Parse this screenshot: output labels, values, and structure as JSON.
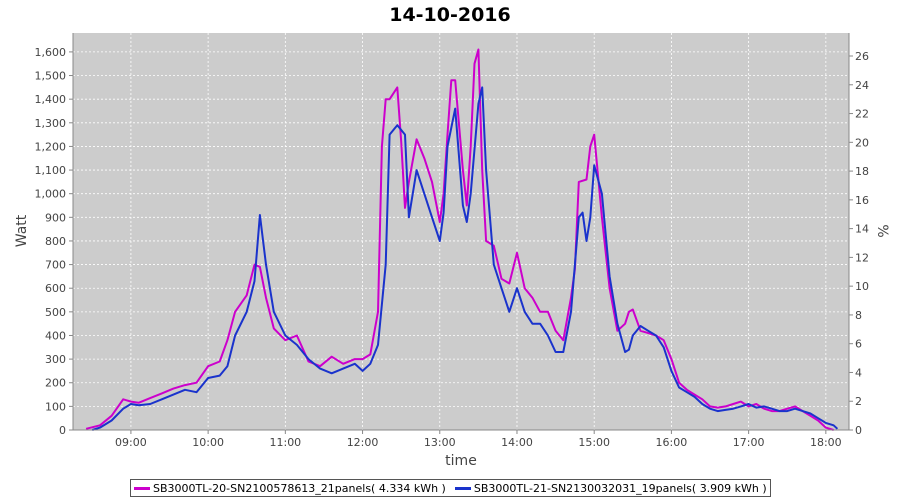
{
  "chart_data": {
    "type": "line",
    "title": "14-10-2016",
    "xlabel": "time",
    "ylabel": "Watt",
    "y2label": "%",
    "xlim": [
      8.25,
      18.3
    ],
    "ylim": [
      0,
      1680
    ],
    "y2lim": [
      0,
      27.6
    ],
    "xticks": [
      "09:00",
      "10:00",
      "11:00",
      "12:00",
      "13:00",
      "14:00",
      "15:00",
      "16:00",
      "17:00",
      "18:00"
    ],
    "xtick_values": [
      9,
      10,
      11,
      12,
      13,
      14,
      15,
      16,
      17,
      18
    ],
    "yticks": [
      "0",
      "100",
      "200",
      "300",
      "400",
      "500",
      "600",
      "700",
      "800",
      "900",
      "1,000",
      "1,100",
      "1,200",
      "1,300",
      "1,400",
      "1,500",
      "1,600"
    ],
    "ytick_values": [
      0,
      100,
      200,
      300,
      400,
      500,
      600,
      700,
      800,
      900,
      1000,
      1100,
      1200,
      1300,
      1400,
      1500,
      1600
    ],
    "y2ticks": [
      "0",
      "2",
      "4",
      "6",
      "8",
      "10",
      "12",
      "14",
      "16",
      "18",
      "20",
      "22",
      "24",
      "26"
    ],
    "y2tick_values": [
      0,
      2,
      4,
      6,
      8,
      10,
      12,
      14,
      16,
      18,
      20,
      22,
      24,
      26
    ],
    "grid": true,
    "background": "#cccccc",
    "legend_position": "bottom",
    "series": [
      {
        "name": "SB3000TL-20-SN2100578613_21panels( 4.334 kWh )",
        "color": "#cc00cc",
        "x": [
          8.42,
          8.6,
          8.75,
          8.9,
          9.0,
          9.1,
          9.25,
          9.4,
          9.55,
          9.7,
          9.85,
          10.0,
          10.15,
          10.25,
          10.35,
          10.5,
          10.6,
          10.67,
          10.75,
          10.85,
          11.0,
          11.15,
          11.3,
          11.45,
          11.6,
          11.75,
          11.9,
          12.0,
          12.1,
          12.2,
          12.25,
          12.3,
          12.35,
          12.45,
          12.5,
          12.55,
          12.6,
          12.7,
          12.8,
          12.9,
          13.0,
          13.05,
          13.1,
          13.15,
          13.2,
          13.3,
          13.35,
          13.4,
          13.45,
          13.5,
          13.55,
          13.6,
          13.7,
          13.8,
          13.9,
          14.0,
          14.1,
          14.2,
          14.3,
          14.4,
          14.5,
          14.6,
          14.7,
          14.75,
          14.8,
          14.9,
          14.95,
          15.0,
          15.1,
          15.2,
          15.3,
          15.4,
          15.45,
          15.5,
          15.6,
          15.7,
          15.8,
          15.9,
          16.0,
          16.1,
          16.2,
          16.3,
          16.4,
          16.5,
          16.6,
          16.7,
          16.8,
          16.9,
          17.0,
          17.1,
          17.2,
          17.3,
          17.4,
          17.5,
          17.6,
          17.7,
          17.8,
          17.9,
          18.0,
          18.1
        ],
        "values": [
          5,
          20,
          60,
          130,
          120,
          115,
          135,
          155,
          175,
          190,
          200,
          270,
          290,
          380,
          500,
          570,
          700,
          690,
          560,
          430,
          380,
          400,
          290,
          270,
          310,
          280,
          300,
          300,
          320,
          500,
          1200,
          1400,
          1400,
          1450,
          1220,
          940,
          1050,
          1230,
          1150,
          1050,
          880,
          1000,
          1250,
          1480,
          1480,
          1100,
          950,
          1200,
          1550,
          1610,
          1100,
          800,
          780,
          640,
          620,
          750,
          600,
          560,
          500,
          500,
          420,
          380,
          560,
          680,
          1050,
          1060,
          1200,
          1250,
          900,
          600,
          420,
          450,
          500,
          510,
          420,
          410,
          400,
          380,
          300,
          200,
          170,
          150,
          130,
          100,
          95,
          100,
          110,
          120,
          100,
          110,
          90,
          80,
          80,
          90,
          100,
          80,
          60,
          40,
          10,
          0
        ]
      },
      {
        "name": "SB3000TL-21-SN2130032031_19panels( 3.909 kWh )",
        "color": "#1a33cc",
        "x": [
          8.5,
          8.6,
          8.75,
          8.9,
          9.0,
          9.1,
          9.25,
          9.4,
          9.55,
          9.7,
          9.85,
          10.0,
          10.15,
          10.25,
          10.35,
          10.5,
          10.6,
          10.67,
          10.75,
          10.85,
          11.0,
          11.15,
          11.3,
          11.45,
          11.6,
          11.75,
          11.9,
          12.0,
          12.1,
          12.2,
          12.3,
          12.35,
          12.45,
          12.55,
          12.6,
          12.7,
          12.8,
          12.9,
          13.0,
          13.05,
          13.1,
          13.2,
          13.3,
          13.35,
          13.4,
          13.5,
          13.55,
          13.6,
          13.7,
          13.8,
          13.9,
          14.0,
          14.1,
          14.2,
          14.3,
          14.4,
          14.5,
          14.6,
          14.7,
          14.8,
          14.85,
          14.9,
          14.95,
          15.0,
          15.1,
          15.2,
          15.3,
          15.4,
          15.45,
          15.5,
          15.6,
          15.7,
          15.8,
          15.9,
          16.0,
          16.1,
          16.2,
          16.3,
          16.4,
          16.5,
          16.6,
          16.7,
          16.8,
          16.9,
          17.0,
          17.1,
          17.2,
          17.3,
          17.4,
          17.5,
          17.6,
          17.7,
          17.8,
          17.9,
          18.0,
          18.1,
          18.15
        ],
        "values": [
          0,
          10,
          40,
          90,
          110,
          105,
          110,
          130,
          150,
          170,
          160,
          220,
          230,
          270,
          400,
          500,
          630,
          910,
          700,
          500,
          400,
          360,
          300,
          260,
          240,
          260,
          280,
          250,
          280,
          360,
          700,
          1250,
          1290,
          1250,
          900,
          1100,
          1000,
          900,
          800,
          920,
          1200,
          1360,
          950,
          880,
          1000,
          1380,
          1450,
          1100,
          700,
          600,
          500,
          600,
          500,
          450,
          450,
          400,
          330,
          330,
          500,
          900,
          920,
          800,
          900,
          1120,
          1000,
          650,
          450,
          330,
          340,
          400,
          440,
          420,
          400,
          350,
          250,
          180,
          160,
          140,
          110,
          90,
          80,
          85,
          90,
          100,
          110,
          95,
          100,
          90,
          80,
          80,
          90,
          80,
          70,
          50,
          30,
          20,
          5
        ]
      }
    ]
  },
  "legend": {
    "items": [
      {
        "label": "SB3000TL-20-SN2100578613_21panels( 4.334 kWh )",
        "color": "#cc00cc"
      },
      {
        "label": "SB3000TL-21-SN2130032031_19panels( 3.909 kWh )",
        "color": "#1a33cc"
      }
    ]
  }
}
